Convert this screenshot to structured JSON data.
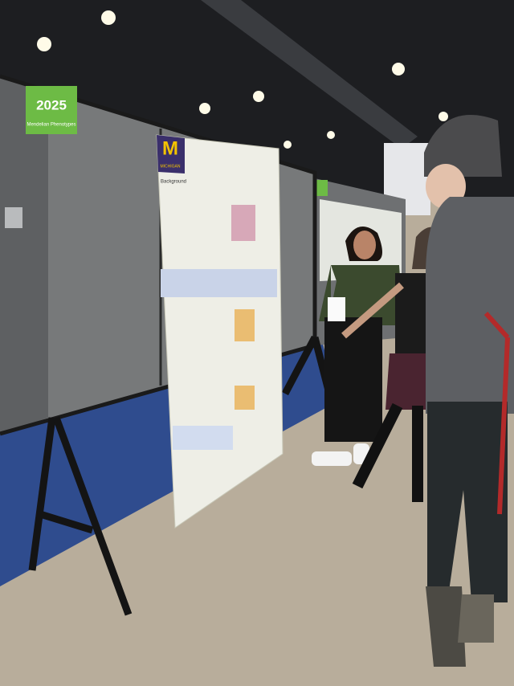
{
  "sign": {
    "year": "2025",
    "subtitle": "Mendelian Phenotypes"
  },
  "poster": {
    "logo": "M",
    "institution": "MICHIGAN",
    "section": "Background"
  }
}
